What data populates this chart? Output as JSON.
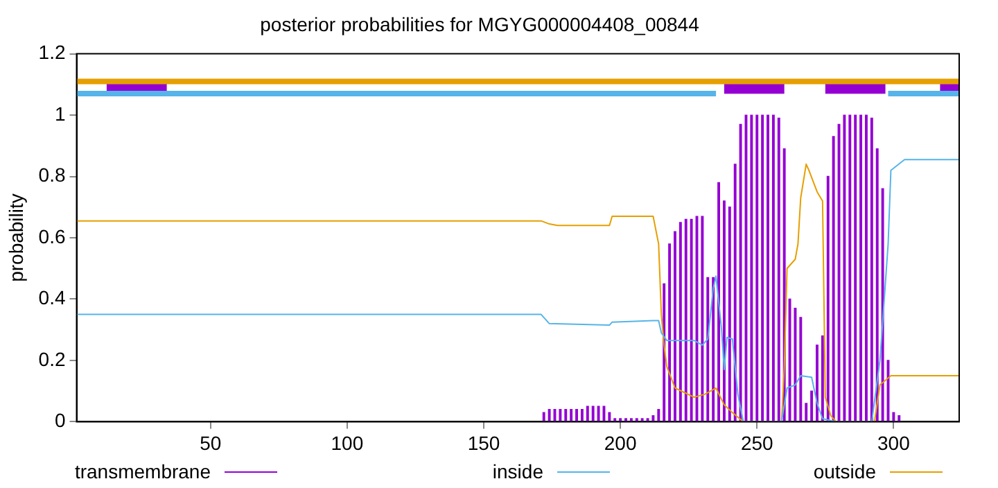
{
  "chart_data": {
    "type": "line",
    "title": "posterior probabilities for MGYG000004408_00844",
    "ylabel": "probability",
    "xlim": [
      1,
      324
    ],
    "xticks": [
      50,
      100,
      150,
      200,
      250,
      300
    ],
    "ylim": [
      0,
      1.2
    ],
    "yticks": [
      0,
      0.2,
      0.4,
      0.6,
      0.8,
      1,
      1.2
    ],
    "grid": false,
    "legend": "bottom",
    "marker": "none",
    "line_style": "solid",
    "series": [
      {
        "name": "transmembrane",
        "type": "bar",
        "color": "#9400d3",
        "x": [
          172,
          174,
          176,
          178,
          180,
          182,
          184,
          186,
          188,
          190,
          192,
          194,
          196,
          198,
          200,
          202,
          204,
          206,
          208,
          210,
          212,
          214,
          216,
          218,
          220,
          222,
          224,
          226,
          228,
          230,
          232,
          234,
          236,
          238,
          240,
          242,
          244,
          246,
          248,
          250,
          252,
          254,
          256,
          258,
          260,
          262,
          264,
          266,
          268,
          270,
          272,
          274,
          276,
          278,
          280,
          282,
          284,
          286,
          288,
          290,
          292,
          294,
          296,
          298,
          300,
          302
        ],
        "values": [
          0.03,
          0.04,
          0.04,
          0.04,
          0.04,
          0.04,
          0.04,
          0.04,
          0.05,
          0.05,
          0.05,
          0.05,
          0.03,
          0.01,
          0.01,
          0.01,
          0.01,
          0.01,
          0.01,
          0.01,
          0.02,
          0.04,
          0.45,
          0.58,
          0.62,
          0.65,
          0.66,
          0.66,
          0.67,
          0.67,
          0.47,
          0.47,
          0.78,
          0.72,
          0.7,
          0.84,
          0.97,
          1,
          1,
          1,
          1,
          1,
          1,
          0.99,
          0.89,
          0.4,
          0.37,
          0.34,
          0.06,
          0.1,
          0.25,
          0.28,
          0.8,
          0.93,
          0.97,
          1,
          1,
          1,
          1,
          1,
          0.99,
          0.89,
          0.76,
          0.2,
          0.03,
          0.02
        ]
      },
      {
        "name": "inside",
        "color": "#56b4e9",
        "x": [
          1,
          171,
          174,
          196,
          197,
          212,
          214,
          215,
          217,
          227,
          230,
          232,
          234,
          235,
          237,
          238,
          239,
          241,
          243,
          245,
          259,
          261,
          264,
          266,
          270,
          272,
          274,
          279,
          292,
          295,
          298,
          299,
          304,
          324
        ],
        "values": [
          0.35,
          0.35,
          0.32,
          0.315,
          0.325,
          0.33,
          0.33,
          0.29,
          0.265,
          0.265,
          0.25,
          0.27,
          0.435,
          0.475,
          0.305,
          0.17,
          0.275,
          0.27,
          0.09,
          0,
          0,
          0.11,
          0.12,
          0.15,
          0.145,
          0.06,
          0.01,
          0,
          0,
          0.2,
          0.58,
          0.82,
          0.855,
          0.855
        ]
      },
      {
        "name": "outside",
        "color": "#e69f00",
        "x": [
          1,
          171,
          174,
          177,
          196,
          197,
          212,
          214,
          215,
          216,
          217,
          220,
          227,
          231,
          235,
          238,
          241,
          245,
          259,
          260,
          261,
          264,
          265,
          266,
          268,
          269,
          272,
          274,
          275,
          277,
          279,
          293,
          295,
          299,
          324
        ],
        "values": [
          0.655,
          0.655,
          0.645,
          0.64,
          0.64,
          0.67,
          0.67,
          0.58,
          0.35,
          0.25,
          0.18,
          0.11,
          0.08,
          0.09,
          0.11,
          0.055,
          0.03,
          0,
          0,
          0.18,
          0.5,
          0.53,
          0.58,
          0.73,
          0.84,
          0.82,
          0.75,
          0.72,
          0.08,
          0.02,
          0,
          0,
          0.12,
          0.15,
          0.15
        ]
      },
      {
        "color": "#e69f00",
        "x": [
          1,
          324
        ],
        "values": [
          1.11,
          1.11
        ]
      },
      {
        "color": "#56b4e9",
        "x": [
          1,
          235,
          236,
          298,
          324
        ],
        "values": [
          1.07,
          1.07,
          null,
          1.07,
          1.07
        ]
      },
      {
        "color": "#9400d3",
        "x": [
          12,
          34,
          35,
          238,
          260,
          261,
          275,
          297,
          298,
          317,
          324
        ],
        "values": [
          1.095,
          1.095,
          null,
          1.09,
          1.09,
          null,
          1.09,
          1.09,
          null,
          1.09,
          1.09
        ]
      }
    ]
  }
}
